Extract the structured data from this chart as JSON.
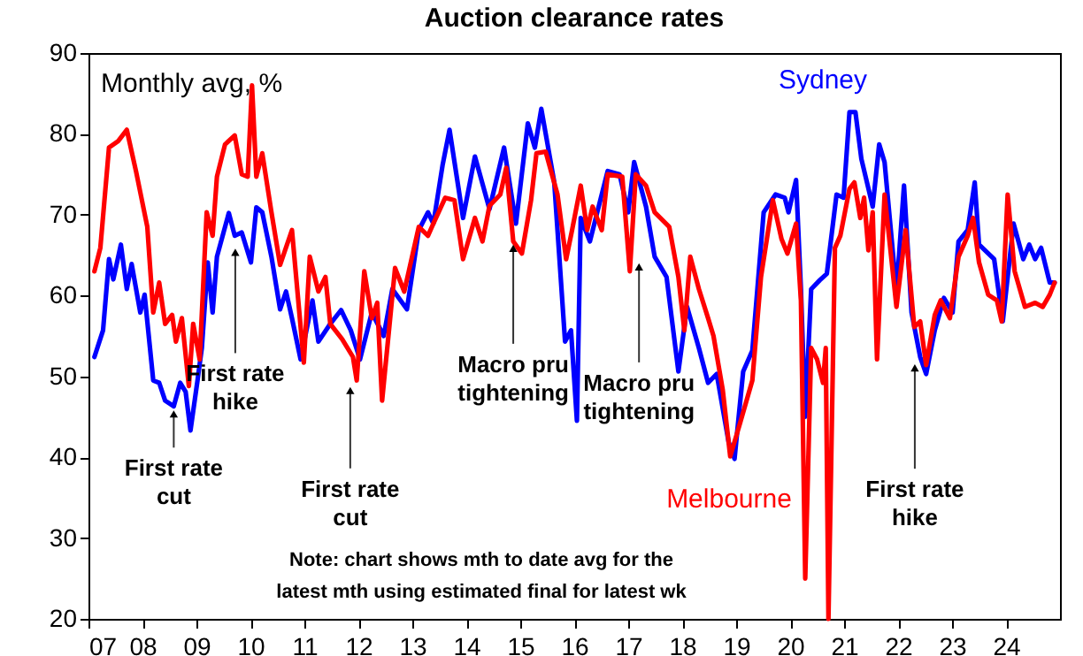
{
  "chart_data": {
    "type": "line",
    "title": "Auction clearance rates",
    "ylabel": "Monthly avg, %",
    "xlim": [
      2007,
      2025
    ],
    "ylim": [
      20,
      90
    ],
    "xticks": [
      {
        "value": 2007,
        "label": "07"
      },
      {
        "value": 2008,
        "label": "08"
      },
      {
        "value": 2009,
        "label": "09"
      },
      {
        "value": 2010,
        "label": "10"
      },
      {
        "value": 2011,
        "label": "11"
      },
      {
        "value": 2012,
        "label": "12"
      },
      {
        "value": 2013,
        "label": "13"
      },
      {
        "value": 2014,
        "label": "14"
      },
      {
        "value": 2015,
        "label": "15"
      },
      {
        "value": 2016,
        "label": "16"
      },
      {
        "value": 2017,
        "label": "17"
      },
      {
        "value": 2018,
        "label": "18"
      },
      {
        "value": 2019,
        "label": "19"
      },
      {
        "value": 2020,
        "label": "20"
      },
      {
        "value": 2021,
        "label": "21"
      },
      {
        "value": 2022,
        "label": "22"
      },
      {
        "value": 2023,
        "label": "23"
      },
      {
        "value": 2024,
        "label": "24"
      }
    ],
    "yticks": [
      20,
      30,
      40,
      50,
      60,
      70,
      80,
      90
    ],
    "grid": false,
    "legend": false,
    "series": [
      {
        "name": "Sydney",
        "color": "#0000ff",
        "x": [
          2007.11,
          2007.27,
          2007.38,
          2007.46,
          2007.6,
          2007.71,
          2007.8,
          2007.96,
          2008.04,
          2008.2,
          2008.31,
          2008.42,
          2008.58,
          2008.7,
          2008.8,
          2008.89,
          2009.02,
          2009.1,
          2009.21,
          2009.3,
          2009.38,
          2009.6,
          2009.71,
          2009.84,
          2010.01,
          2010.11,
          2010.22,
          2010.39,
          2010.55,
          2010.66,
          2010.77,
          2010.93,
          2011.15,
          2011.26,
          2011.48,
          2011.68,
          2011.86,
          2012.03,
          2012.25,
          2012.47,
          2012.63,
          2012.9,
          2013.12,
          2013.29,
          2013.39,
          2013.56,
          2013.69,
          2013.94,
          2014.16,
          2014.43,
          2014.7,
          2014.92,
          2015.14,
          2015.27,
          2015.39,
          2015.63,
          2015.83,
          2015.94,
          2016.05,
          2016.12,
          2016.29,
          2016.62,
          2016.84,
          2017.0,
          2017.11,
          2017.33,
          2017.49,
          2017.71,
          2017.93,
          2018.09,
          2018.31,
          2018.48,
          2018.64,
          2018.86,
          2018.97,
          2019.13,
          2019.3,
          2019.51,
          2019.73,
          2019.9,
          2019.97,
          2020.11,
          2020.2,
          2020.28,
          2020.39,
          2020.55,
          2020.68,
          2020.86,
          2020.99,
          2021.1,
          2021.21,
          2021.32,
          2021.53,
          2021.65,
          2021.75,
          2021.97,
          2022.11,
          2022.25,
          2022.41,
          2022.52,
          2022.68,
          2022.85,
          2023.01,
          2023.12,
          2023.29,
          2023.42,
          2023.5,
          2023.78,
          2023.94,
          2024.14,
          2024.32,
          2024.43,
          2024.54,
          2024.65,
          2024.81,
          2024.9
        ],
        "values": [
          52.4,
          55.7,
          64.5,
          62,
          66.3,
          60.8,
          63.9,
          57.9,
          60.1,
          49.5,
          49.2,
          47,
          46.3,
          49.2,
          48.1,
          43.3,
          49.5,
          53.5,
          64.1,
          57.9,
          64.8,
          70.2,
          67.4,
          67.8,
          64.1,
          70.9,
          70.3,
          64.8,
          58.3,
          60.5,
          57.2,
          52.1,
          59.4,
          54.3,
          56.5,
          58.2,
          55.7,
          52.1,
          57.9,
          55,
          60.8,
          58.3,
          68.1,
          70.3,
          68.9,
          76.1,
          80.5,
          69.6,
          77.2,
          70.7,
          78.3,
          68.9,
          81.3,
          78.3,
          83.1,
          74,
          54.3,
          55.7,
          44.5,
          69.6,
          66.7,
          75.4,
          75,
          70.3,
          76.5,
          71,
          64.8,
          62.3,
          50.6,
          58.6,
          53.5,
          49.2,
          50.3,
          41.9,
          39.8,
          50.6,
          53.2,
          70.3,
          72.5,
          72.1,
          70.3,
          74.3,
          60.8,
          45,
          60.8,
          61.9,
          62.7,
          72.5,
          72.1,
          82.7,
          82.7,
          76.9,
          71,
          78.7,
          76.5,
          60.5,
          73.6,
          57.9,
          52.4,
          50.3,
          55.7,
          59.7,
          57.9,
          66.7,
          68.1,
          74,
          66.3,
          64.5,
          56.8,
          68.9,
          64.5,
          66.3,
          64.5,
          65.9,
          61.6,
          61.6
        ]
      },
      {
        "name": "Melbourne",
        "color": "#ff0000",
        "x": [
          2007.11,
          2007.22,
          2007.38,
          2007.55,
          2007.71,
          2007.88,
          2008.09,
          2008.2,
          2008.31,
          2008.42,
          2008.55,
          2008.62,
          2008.73,
          2008.86,
          2008.94,
          2009.06,
          2009.19,
          2009.3,
          2009.38,
          2009.53,
          2009.71,
          2009.84,
          2009.95,
          2010.03,
          2010.11,
          2010.22,
          2010.39,
          2010.55,
          2010.77,
          2010.99,
          2011.1,
          2011.26,
          2011.39,
          2011.48,
          2011.7,
          2011.9,
          2011.97,
          2012.11,
          2012.25,
          2012.35,
          2012.44,
          2012.68,
          2012.85,
          2013.12,
          2013.29,
          2013.39,
          2013.61,
          2013.78,
          2013.94,
          2014.16,
          2014.3,
          2014.43,
          2014.63,
          2014.74,
          2014.87,
          2015.03,
          2015.2,
          2015.3,
          2015.47,
          2015.69,
          2015.85,
          2015.96,
          2016.12,
          2016.24,
          2016.34,
          2016.51,
          2016.62,
          2016.89,
          2017.03,
          2017.14,
          2017.33,
          2017.49,
          2017.76,
          2017.93,
          2018.04,
          2018.15,
          2018.31,
          2018.48,
          2018.58,
          2018.75,
          2018.89,
          2019.08,
          2019.3,
          2019.46,
          2019.68,
          2019.84,
          2019.95,
          2020.11,
          2020.2,
          2020.28,
          2020.39,
          2020.5,
          2020.61,
          2020.66,
          2020.71,
          2020.83,
          2020.93,
          2021.1,
          2021.19,
          2021.3,
          2021.37,
          2021.45,
          2021.53,
          2021.61,
          2021.75,
          2021.97,
          2022.14,
          2022.3,
          2022.41,
          2022.52,
          2022.68,
          2022.79,
          2022.96,
          2023.12,
          2023.29,
          2023.39,
          2023.5,
          2023.67,
          2023.83,
          2023.92,
          2024.03,
          2024.16,
          2024.35,
          2024.54,
          2024.68,
          2024.81,
          2024.9
        ],
        "values": [
          63,
          65.9,
          78.3,
          79.1,
          80.5,
          75.4,
          68.5,
          57.9,
          61.6,
          56.5,
          57.6,
          54.3,
          57.2,
          48.8,
          56.5,
          52.1,
          70.3,
          67.4,
          74.7,
          78.7,
          79.8,
          75,
          74.7,
          86,
          74.7,
          77.6,
          70.3,
          63.8,
          68.1,
          51.7,
          64.8,
          60.5,
          62.3,
          56.5,
          54.6,
          52.4,
          49.5,
          63,
          57.2,
          59.1,
          47,
          63.4,
          60.5,
          68.5,
          67.4,
          68.9,
          72.1,
          71.8,
          64.5,
          69.6,
          66.7,
          71.1,
          72.5,
          75.8,
          66.7,
          65.2,
          71.8,
          77.6,
          77.8,
          72.5,
          64.5,
          68.1,
          73.6,
          68.1,
          71,
          68.1,
          75,
          74.7,
          63,
          75,
          73.6,
          70.3,
          68.5,
          62.3,
          55.7,
          64.8,
          60.8,
          57.2,
          55,
          48.4,
          40.1,
          44.4,
          49.5,
          62.3,
          71.8,
          67,
          65.2,
          68.9,
          59.4,
          25,
          53.5,
          52.1,
          49.2,
          53.5,
          20,
          65.9,
          67.4,
          73.2,
          74,
          69.6,
          72.1,
          65.6,
          70.3,
          52.1,
          72.5,
          58.6,
          68.1,
          56.1,
          56.8,
          51.4,
          57.6,
          59.4,
          57.2,
          64.8,
          67.4,
          69.6,
          64.1,
          60.1,
          59.4,
          56.8,
          72.5,
          63,
          58.6,
          59.1,
          58.6,
          60.1,
          61.6
        ]
      }
    ],
    "annotations": [
      {
        "text": "First rate cut",
        "x": 2008.58,
        "y": 46
      },
      {
        "text": "First rate hike",
        "x": 2009.72,
        "y": 66
      },
      {
        "text": "First rate cut",
        "x": 2011.85,
        "y": 48.9
      },
      {
        "text": "Macro pru tightening",
        "x": 2014.87,
        "y": 66.5
      },
      {
        "text": "Macro pru tightening",
        "x": 2017.2,
        "y": 64.2
      },
      {
        "text": "First rate hike",
        "x": 2022.31,
        "y": 51.7
      },
      "Note: chart shows mth to date avg for the latest mth using estimated final for latest wk"
    ]
  }
}
